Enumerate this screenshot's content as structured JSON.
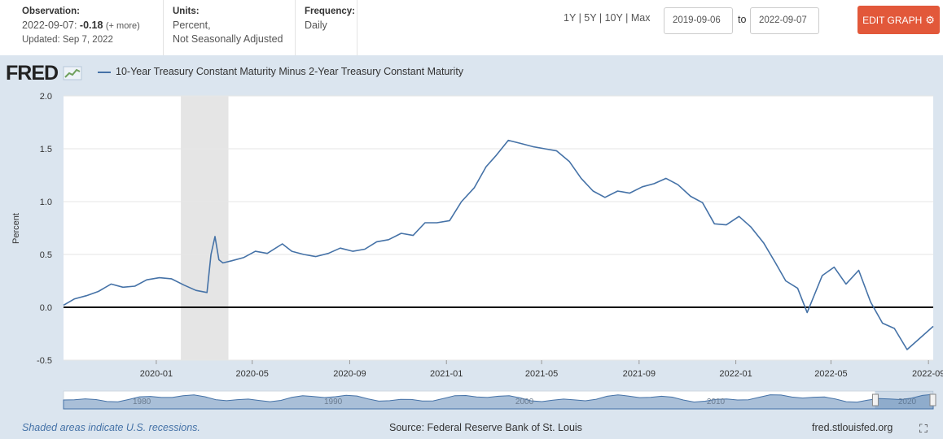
{
  "observation": {
    "label": "Observation:",
    "date": "2022-09-07:",
    "value": "-0.18",
    "more": "(+ more)",
    "updated": "Updated: Sep 7, 2022"
  },
  "units": {
    "label": "Units:",
    "line1": "Percent,",
    "line2": "Not Seasonally Adjusted"
  },
  "frequency": {
    "label": "Frequency:",
    "value": "Daily"
  },
  "range": {
    "links": [
      "1Y",
      "5Y",
      "10Y",
      "Max"
    ],
    "sep": "|",
    "start": "2019-09-06",
    "to": "to",
    "end": "2022-09-07"
  },
  "edit_button": {
    "label": "EDIT GRAPH",
    "icon": "gear-icon"
  },
  "logo": {
    "text": "FRED"
  },
  "colors": {
    "series": "#4572a7",
    "accent": "#e2583a",
    "recession": "#e5e5e5"
  },
  "footer": {
    "note": "Shaded areas indicate U.S. recessions.",
    "source": "Source: Federal Reserve Bank of St. Louis",
    "url": "fred.stlouisfed.org"
  },
  "navigator": {
    "tick_labels": [
      "1980",
      "1990",
      "2000",
      "2010",
      "2020"
    ]
  },
  "chart_data": {
    "type": "line",
    "title": "10-Year Treasury Constant Maturity Minus 2-Year Treasury Constant Maturity",
    "ylabel": "Percent",
    "xlabel": "",
    "ylim": [
      -0.5,
      2.0
    ],
    "xlim": [
      "2019-09-06",
      "2022-09-07"
    ],
    "yticks": [
      "2.0",
      "1.5",
      "1.0",
      "0.5",
      "0.0",
      "-0.5"
    ],
    "xticks": [
      "2020-01",
      "2020-05",
      "2020-09",
      "2021-01",
      "2021-05",
      "2021-09",
      "2022-01",
      "2022-05",
      "2022-09"
    ],
    "recession": {
      "start": "2020-02",
      "end": "2020-04"
    },
    "series": [
      {
        "name": "10-Year Treasury Constant Maturity Minus 2-Year Treasury Constant Maturity",
        "x": [
          "2019-09-06",
          "2019-09-20",
          "2019-10-05",
          "2019-10-20",
          "2019-11-05",
          "2019-11-20",
          "2019-12-05",
          "2019-12-20",
          "2020-01-05",
          "2020-01-20",
          "2020-02-05",
          "2020-02-20",
          "2020-03-05",
          "2020-03-10",
          "2020-03-15",
          "2020-03-20",
          "2020-03-25",
          "2020-04-05",
          "2020-04-20",
          "2020-05-05",
          "2020-05-20",
          "2020-06-08",
          "2020-06-20",
          "2020-07-05",
          "2020-07-20",
          "2020-08-05",
          "2020-08-20",
          "2020-09-05",
          "2020-09-20",
          "2020-10-05",
          "2020-10-20",
          "2020-11-05",
          "2020-11-20",
          "2020-12-05",
          "2020-12-20",
          "2021-01-05",
          "2021-01-20",
          "2021-02-05",
          "2021-02-20",
          "2021-03-05",
          "2021-03-20",
          "2021-04-05",
          "2021-04-20",
          "2021-05-05",
          "2021-05-20",
          "2021-06-05",
          "2021-06-20",
          "2021-07-05",
          "2021-07-20",
          "2021-08-05",
          "2021-08-20",
          "2021-09-05",
          "2021-09-20",
          "2021-10-05",
          "2021-10-20",
          "2021-11-05",
          "2021-11-20",
          "2021-12-05",
          "2021-12-20",
          "2022-01-05",
          "2022-01-20",
          "2022-02-05",
          "2022-02-20",
          "2022-03-05",
          "2022-03-20",
          "2022-04-01",
          "2022-04-20",
          "2022-05-05",
          "2022-05-20",
          "2022-06-05",
          "2022-06-20",
          "2022-07-05",
          "2022-07-20",
          "2022-08-05",
          "2022-08-20",
          "2022-09-07"
        ],
        "values": [
          0.02,
          0.08,
          0.11,
          0.15,
          0.22,
          0.19,
          0.2,
          0.26,
          0.28,
          0.27,
          0.21,
          0.16,
          0.14,
          0.5,
          0.67,
          0.45,
          0.42,
          0.44,
          0.47,
          0.53,
          0.51,
          0.6,
          0.53,
          0.5,
          0.48,
          0.51,
          0.56,
          0.53,
          0.55,
          0.62,
          0.64,
          0.7,
          0.68,
          0.8,
          0.8,
          0.82,
          1.0,
          1.13,
          1.33,
          1.44,
          1.58,
          1.55,
          1.52,
          1.5,
          1.48,
          1.38,
          1.22,
          1.1,
          1.04,
          1.1,
          1.08,
          1.14,
          1.17,
          1.22,
          1.16,
          1.05,
          0.99,
          0.79,
          0.78,
          0.86,
          0.76,
          0.61,
          0.42,
          0.25,
          0.18,
          -0.05,
          0.3,
          0.38,
          0.22,
          0.35,
          0.05,
          -0.15,
          -0.2,
          -0.4,
          -0.3,
          -0.18
        ]
      }
    ]
  }
}
